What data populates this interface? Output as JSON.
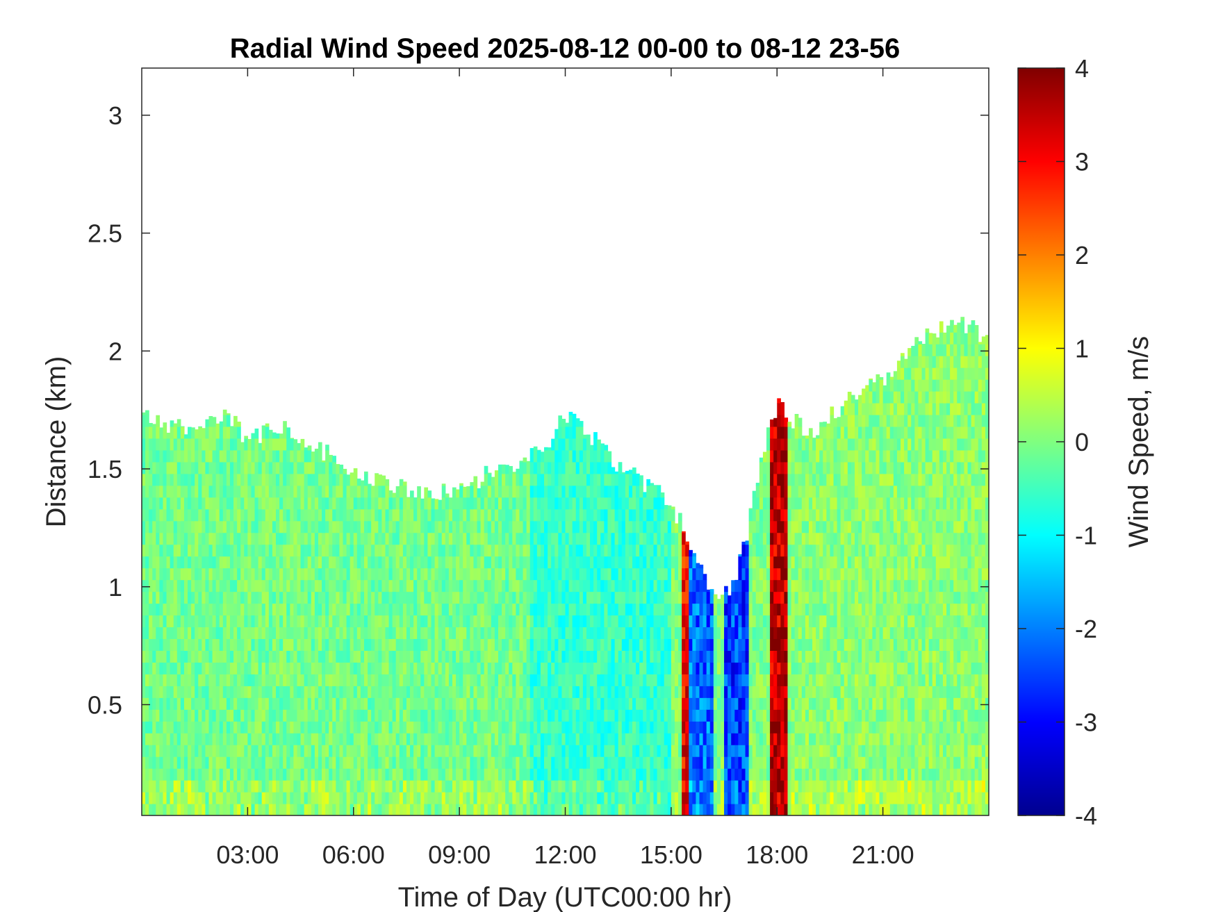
{
  "chart_data": {
    "type": "heatmap",
    "title": "Radial Wind Speed 2025-08-12 00-00 to 08-12 23-56",
    "xlabel": "Time of Day (UTC00:00 hr)",
    "ylabel": "Distance (km)",
    "xlim_hours": [
      0,
      24
    ],
    "ylim_km": [
      0.03,
      3.2
    ],
    "x_ticks": [
      {
        "hour": 3,
        "label": "03:00"
      },
      {
        "hour": 6,
        "label": "06:00"
      },
      {
        "hour": 9,
        "label": "09:00"
      },
      {
        "hour": 12,
        "label": "12:00"
      },
      {
        "hour": 15,
        "label": "15:00"
      },
      {
        "hour": 18,
        "label": "18:00"
      },
      {
        "hour": 21,
        "label": "21:00"
      }
    ],
    "y_ticks": [
      {
        "km": 0.5,
        "label": "0.5"
      },
      {
        "km": 1,
        "label": "1"
      },
      {
        "km": 1.5,
        "label": "1.5"
      },
      {
        "km": 2,
        "label": "2"
      },
      {
        "km": 2.5,
        "label": "2.5"
      },
      {
        "km": 3,
        "label": "3"
      }
    ],
    "grid": false,
    "colorbar": {
      "label": "Wind Speed, m/s",
      "range": [
        -4,
        4
      ],
      "colormap": "jet",
      "ticks": [
        {
          "value": 4,
          "label": "4"
        },
        {
          "value": 3,
          "label": "3"
        },
        {
          "value": 2,
          "label": "2"
        },
        {
          "value": 1,
          "label": "1"
        },
        {
          "value": 0,
          "label": "0"
        },
        {
          "value": -1,
          "label": "-1"
        },
        {
          "value": -2,
          "label": "-2"
        },
        {
          "value": -3,
          "label": "-3"
        },
        {
          "value": -4,
          "label": "-4"
        }
      ]
    },
    "data_top_km": [
      [
        0,
        1.73
      ],
      [
        0.5,
        1.7
      ],
      [
        1,
        1.68
      ],
      [
        1.5,
        1.66
      ],
      [
        2,
        1.7
      ],
      [
        2.5,
        1.72
      ],
      [
        3,
        1.62
      ],
      [
        3.5,
        1.65
      ],
      [
        4,
        1.68
      ],
      [
        4.5,
        1.62
      ],
      [
        5,
        1.58
      ],
      [
        5.5,
        1.55
      ],
      [
        6,
        1.5
      ],
      [
        6.5,
        1.47
      ],
      [
        7,
        1.44
      ],
      [
        7.5,
        1.42
      ],
      [
        8,
        1.4
      ],
      [
        8.5,
        1.4
      ],
      [
        9,
        1.42
      ],
      [
        9.5,
        1.45
      ],
      [
        10,
        1.5
      ],
      [
        10.5,
        1.52
      ],
      [
        11,
        1.55
      ],
      [
        11.5,
        1.62
      ],
      [
        12,
        1.72
      ],
      [
        12.5,
        1.68
      ],
      [
        13,
        1.6
      ],
      [
        13.5,
        1.52
      ],
      [
        14,
        1.46
      ],
      [
        14.5,
        1.42
      ],
      [
        15,
        1.35
      ],
      [
        15.5,
        1.2
      ],
      [
        16,
        1.02
      ],
      [
        16.5,
        0.95
      ],
      [
        17,
        1.12
      ],
      [
        17.5,
        1.5
      ],
      [
        18,
        1.78
      ],
      [
        18.5,
        1.7
      ],
      [
        19,
        1.65
      ],
      [
        19.5,
        1.72
      ],
      [
        20,
        1.8
      ],
      [
        20.5,
        1.86
      ],
      [
        21,
        1.88
      ],
      [
        21.5,
        1.95
      ],
      [
        22,
        2.05
      ],
      [
        22.5,
        2.08
      ],
      [
        23,
        2.12
      ],
      [
        23.5,
        2.1
      ],
      [
        24,
        2.05
      ]
    ],
    "wind_speed_regions_ms": [
      {
        "from_hour": 0,
        "to_hour": 11,
        "value": -0.1
      },
      {
        "from_hour": 11,
        "to_hour": 15,
        "value": -0.6
      },
      {
        "from_hour": 15.3,
        "to_hour": 16.2,
        "value": -2.2
      },
      {
        "from_hour": 15.3,
        "to_hour": 15.5,
        "value": 3.0
      },
      {
        "from_hour": 16.5,
        "to_hour": 17.2,
        "value": -2.5
      },
      {
        "from_hour": 17.8,
        "to_hour": 18.3,
        "value": 3.5
      },
      {
        "from_hour": 18.3,
        "to_hour": 24,
        "value": 0.1
      }
    ]
  }
}
